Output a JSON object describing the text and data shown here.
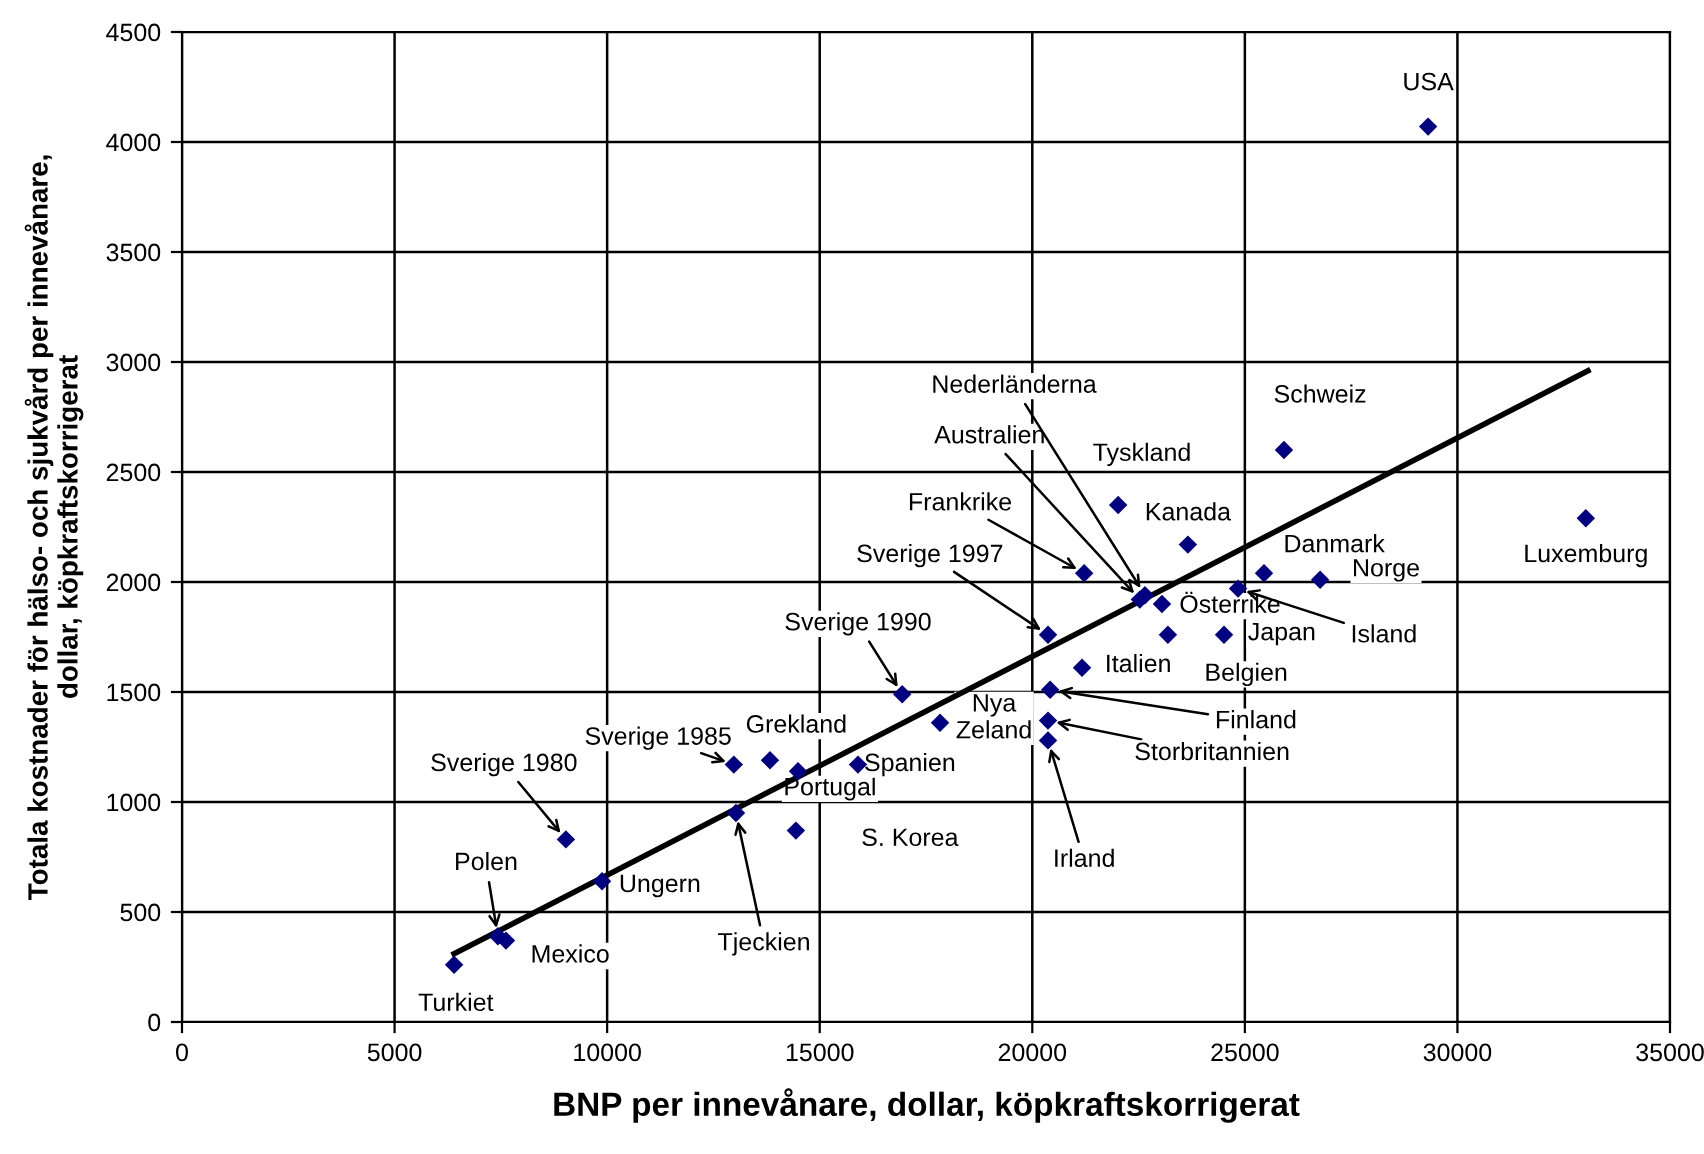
{
  "chart_data": {
    "type": "scatter",
    "xlabel": "BNP per innevånare, dollar, köpkraftskorrigerat",
    "ylabel": "Totala kostnader för hälso- och sjukvård per innevånare,\ndollar, köpkraftskorrigerat",
    "xlim": [
      0,
      35000
    ],
    "ylim": [
      0,
      4500
    ],
    "xticks": [
      0,
      5000,
      10000,
      15000,
      20000,
      25000,
      30000,
      35000
    ],
    "yticks": [
      0,
      500,
      1000,
      1500,
      2000,
      2500,
      3000,
      3500,
      4000,
      4500
    ],
    "grid": true,
    "marker": "diamond",
    "series": [
      {
        "color": "#000080",
        "x": [
          6400,
          7430,
          7620,
          9030,
          9880,
          12980,
          13830,
          14490,
          15900,
          14440,
          13030,
          16940,
          17830,
          21170,
          20420,
          20370,
          20370,
          20370,
          21220,
          22530,
          22650,
          22020,
          23660,
          23050,
          24510,
          23190,
          24840,
          25450,
          26770,
          25920,
          33020,
          29310
        ],
        "values": [
          260,
          390,
          370,
          830,
          640,
          1170,
          1190,
          1140,
          1170,
          870,
          950,
          1490,
          1360,
          1610,
          1510,
          1370,
          1280,
          1760,
          2040,
          1920,
          1940,
          2350,
          2170,
          1900,
          1760,
          1760,
          1970,
          2040,
          2010,
          2600,
          2290,
          4070
        ]
      },
      {
        "type": "line",
        "color": "#000000",
        "marker": "none",
        "x": [
          6400,
          33070
        ],
        "values": [
          310,
          2960
        ]
      }
    ],
    "annotations": [
      {
        "text": "Turkiet",
        "x": 6400,
        "y": 260
      },
      {
        "text": "Polen",
        "x": 7430,
        "y": 390
      },
      {
        "text": "Mexico",
        "x": 7620,
        "y": 370
      },
      {
        "text": "Sverige 1980",
        "x": 9030,
        "y": 830
      },
      {
        "text": "Ungern",
        "x": 9880,
        "y": 640
      },
      {
        "text": "Sverige 1985",
        "x": 12980,
        "y": 1170
      },
      {
        "text": "Grekland",
        "x": 13830,
        "y": 1190
      },
      {
        "text": "Portugal",
        "x": 14490,
        "y": 1140
      },
      {
        "text": "Spanien",
        "x": 15900,
        "y": 1170
      },
      {
        "text": "S. Korea",
        "x": 14440,
        "y": 870
      },
      {
        "text": "Tjeckien",
        "x": 13030,
        "y": 950
      },
      {
        "text": "Sverige 1990",
        "x": 16940,
        "y": 1490
      },
      {
        "text": "Nya\nZeland",
        "x": 17830,
        "y": 1360
      },
      {
        "text": "Italien",
        "x": 21170,
        "y": 1610
      },
      {
        "text": "Finland",
        "x": 20420,
        "y": 1510
      },
      {
        "text": "Storbritannien",
        "x": 20370,
        "y": 1370
      },
      {
        "text": "Irland",
        "x": 20370,
        "y": 1280
      },
      {
        "text": "Sverige 1997",
        "x": 20370,
        "y": 1760
      },
      {
        "text": "Frankrike",
        "x": 21220,
        "y": 2040
      },
      {
        "text": "Australien",
        "x": 22530,
        "y": 1920
      },
      {
        "text": "Nederländerna",
        "x": 22650,
        "y": 1940
      },
      {
        "text": "Tyskland",
        "x": 22020,
        "y": 2350
      },
      {
        "text": "Kanada",
        "x": 23660,
        "y": 2170
      },
      {
        "text": "Österrike",
        "x": 23050,
        "y": 1900
      },
      {
        "text": "Japan",
        "x": 24510,
        "y": 1760
      },
      {
        "text": "Belgien",
        "x": 23190,
        "y": 1760
      },
      {
        "text": "Island",
        "x": 24840,
        "y": 1970
      },
      {
        "text": "Danmark",
        "x": 25450,
        "y": 2040
      },
      {
        "text": "Norge",
        "x": 26770,
        "y": 2010
      },
      {
        "text": "Schweiz",
        "x": 25920,
        "y": 2600
      },
      {
        "text": "Luxemburg",
        "x": 33020,
        "y": 2290
      },
      {
        "text": "USA",
        "x": 29310,
        "y": 4070
      }
    ]
  }
}
